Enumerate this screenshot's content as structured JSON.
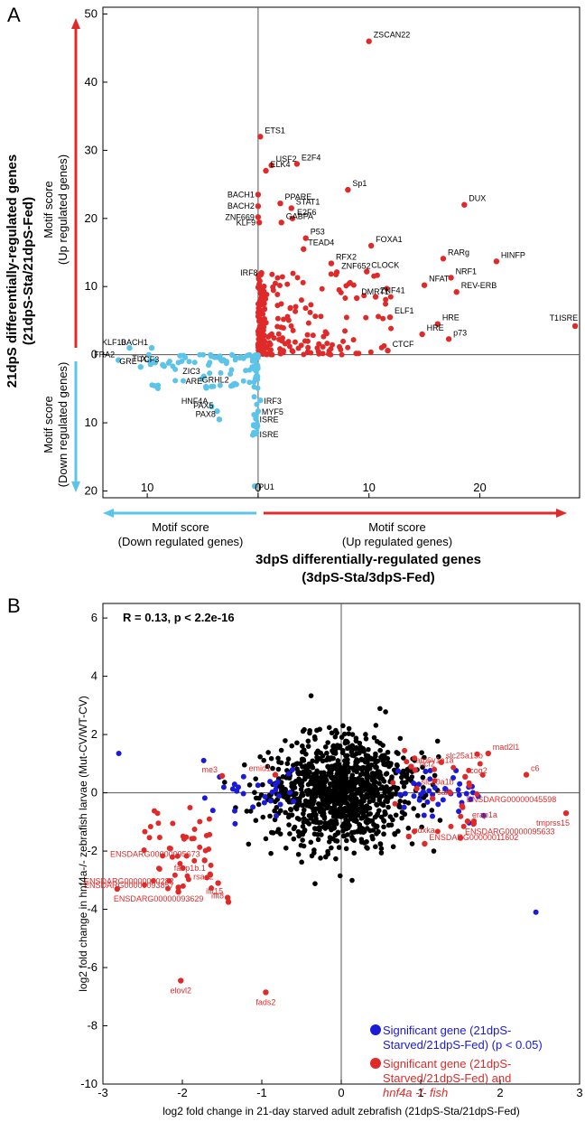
{
  "chart_data": [
    {
      "type": "scatter",
      "panel": "A",
      "title": "",
      "xlabel": [
        "3dpS differentially-regulated genes",
        "(3dpS-Sta/3dpS-Fed)"
      ],
      "ylabel": [
        "21dpS differentially-regulated genes",
        "(21dpS-Sta/21dpS-Fed)"
      ],
      "x_arrow_left": [
        "Motif score",
        "(Down regulated genes)"
      ],
      "x_arrow_right": [
        "Motif score",
        "(Up regulated genes)"
      ],
      "y_arrow_up": [
        "Motif score",
        "(Up regulated genes)"
      ],
      "y_arrow_down": [
        "Motif score",
        "(Down regulated genes)"
      ],
      "xlim": [
        -14,
        29
      ],
      "ylim": [
        -21,
        51
      ],
      "x_ticks": [
        {
          "v": -10,
          "label": "10"
        },
        {
          "v": 0,
          "label": "0"
        },
        {
          "v": 10,
          "label": "10"
        },
        {
          "v": 20,
          "label": "20"
        }
      ],
      "y_ticks": [
        {
          "v": 50,
          "label": "50"
        },
        {
          "v": 40,
          "label": "40"
        },
        {
          "v": 30,
          "label": "30"
        },
        {
          "v": 20,
          "label": "20"
        },
        {
          "v": 10,
          "label": "10"
        },
        {
          "v": 0,
          "label": "0"
        },
        {
          "v": -10,
          "label": "10"
        },
        {
          "v": -20,
          "label": "20"
        }
      ],
      "colors": {
        "up": "#e02a2a",
        "down": "#5bc4e8",
        "arrow_up": "#e02a2a",
        "arrow_down": "#5bc4e8"
      },
      "labeled_points": [
        {
          "label": "ZSCAN22",
          "x": 10,
          "y": 46,
          "group": "up"
        },
        {
          "label": "ETS1",
          "x": 0.2,
          "y": 32,
          "group": "up"
        },
        {
          "label": "USF2",
          "x": 1.2,
          "y": 27.8,
          "group": "up"
        },
        {
          "label": "E2F4",
          "x": 3.5,
          "y": 28,
          "group": "up"
        },
        {
          "label": "ELK4",
          "x": 0.7,
          "y": 27,
          "group": "up"
        },
        {
          "label": "BACH1",
          "x": 0,
          "y": 23.5,
          "group": "up"
        },
        {
          "label": "BACH2",
          "x": 0,
          "y": 21.8,
          "group": "up"
        },
        {
          "label": "PPARE",
          "x": 2.0,
          "y": 22.2,
          "group": "up"
        },
        {
          "label": "STAT1",
          "x": 3.0,
          "y": 21.5,
          "group": "up"
        },
        {
          "label": "Sp1",
          "x": 8.1,
          "y": 24.2,
          "group": "up"
        },
        {
          "label": "DUX",
          "x": 18.6,
          "y": 22,
          "group": "up"
        },
        {
          "label": "ZNF669",
          "x": 0,
          "y": 20.2,
          "group": "up"
        },
        {
          "label": "E2F6",
          "x": 3.1,
          "y": 20,
          "group": "up"
        },
        {
          "label": "KLF9",
          "x": 0.1,
          "y": 19.4,
          "group": "up"
        },
        {
          "label": "GABPA",
          "x": 2.1,
          "y": 19.4,
          "group": "up"
        },
        {
          "label": "P53",
          "x": 4.3,
          "y": 17.1,
          "group": "up"
        },
        {
          "label": "FOXA1",
          "x": 10.2,
          "y": 16,
          "group": "up"
        },
        {
          "label": "TEAD4",
          "x": 4.1,
          "y": 15.5,
          "group": "up"
        },
        {
          "label": "RARg",
          "x": 16.7,
          "y": 14.1,
          "group": "up"
        },
        {
          "label": "HINFP",
          "x": 21.5,
          "y": 13.7,
          "group": "up"
        },
        {
          "label": "RFX2",
          "x": 6.6,
          "y": 13.4,
          "group": "up"
        },
        {
          "label": "IRF8",
          "x": 0.3,
          "y": 12,
          "group": "up"
        },
        {
          "label": "ZNF652",
          "x": 7.1,
          "y": 12.1,
          "group": "up"
        },
        {
          "label": "CLOCK",
          "x": 9.8,
          "y": 12.2,
          "group": "up"
        },
        {
          "label": "NRF1",
          "x": 17.4,
          "y": 11.3,
          "group": "up"
        },
        {
          "label": "NFAT",
          "x": 15.0,
          "y": 10.2,
          "group": "up"
        },
        {
          "label": "REV-ERB",
          "x": 17.9,
          "y": 9.2,
          "group": "up"
        },
        {
          "label": "DMRT1",
          "x": 8.9,
          "y": 8.3,
          "group": "up"
        },
        {
          "label": "ZNF41",
          "x": 10.6,
          "y": 8.5,
          "group": "up"
        },
        {
          "label": "ELF1",
          "x": 11.9,
          "y": 5.5,
          "group": "up"
        },
        {
          "label": "HRE",
          "x": 16.2,
          "y": 4.5,
          "group": "up"
        },
        {
          "label": "HRE",
          "x": 14.8,
          "y": 3,
          "group": "up"
        },
        {
          "label": "T1ISRE",
          "x": 28.6,
          "y": 4.2,
          "group": "up"
        },
        {
          "label": "p73",
          "x": 17.2,
          "y": 2.3,
          "group": "up"
        },
        {
          "label": "CTCF",
          "x": 11.7,
          "y": 0.6,
          "group": "up"
        },
        {
          "label": "KLF10",
          "x": -11.6,
          "y": 1,
          "group": "down"
        },
        {
          "label": "BACH1",
          "x": -9.6,
          "y": 1,
          "group": "down"
        },
        {
          "label": "FRA2",
          "x": -12.6,
          "y": -0.8,
          "group": "down"
        },
        {
          "label": "GRE",
          "x": -10.6,
          "y": -1.8,
          "group": "down"
        },
        {
          "label": "TLX",
          "x": -9.7,
          "y": -1.4,
          "group": "down"
        },
        {
          "label": "TCF3",
          "x": -8.6,
          "y": -1.5,
          "group": "down"
        },
        {
          "label": "ZIC3",
          "x": -4.9,
          "y": -3.2,
          "group": "down"
        },
        {
          "label": "ARE",
          "x": -4.7,
          "y": -4.7,
          "group": "down"
        },
        {
          "label": "HNF4A",
          "x": -4.2,
          "y": -7.6,
          "group": "down"
        },
        {
          "label": "PAX5",
          "x": -3.7,
          "y": -8.3,
          "group": "down"
        },
        {
          "label": "PAX8",
          "x": -3.5,
          "y": -9.5,
          "group": "down"
        },
        {
          "label": "GRHL2",
          "x": -2.3,
          "y": -4.5,
          "group": "down"
        },
        {
          "label": "IRF3",
          "x": 0.2,
          "y": -6.7,
          "group": "down"
        },
        {
          "label": "MYF5",
          "x": 0,
          "y": -8.3,
          "group": "down"
        },
        {
          "label": "ISRE",
          "x": -0.2,
          "y": -9.4,
          "group": "down"
        },
        {
          "label": "ISRE",
          "x": -0.2,
          "y": -11.6,
          "group": "down"
        },
        {
          "label": "PU1",
          "x": -0.3,
          "y": -19.3,
          "group": "down"
        }
      ]
    },
    {
      "type": "scatter",
      "panel": "B",
      "title": "",
      "annotation": "R = 0.13, p < 2.2e-16",
      "xlabel": "log2 fold change in 21-day starved adult zebrafish (21dpS-Sta/21dpS-Fed)",
      "ylabel": "log2 fold change in hnf4a-/- zebrafish larvae (Mut-CV/WT-CV)",
      "xlim": [
        -3,
        3
      ],
      "ylim": [
        -10,
        6.5
      ],
      "x_ticks": [
        -3,
        -2,
        -1,
        0,
        1,
        2,
        3
      ],
      "y_ticks": [
        6,
        4,
        2,
        0,
        -2,
        -4,
        -6,
        -8,
        -10
      ],
      "colors": {
        "other": "#000000",
        "significant": "#1a1adb",
        "significant_hnf4a": "#e02a2a"
      },
      "legend": [
        {
          "group": "significant",
          "text": [
            "Significant gene (21dpS-",
            "Starved/21dpS-Fed) (p < 0.05)"
          ]
        },
        {
          "group": "significant_hnf4a",
          "text": [
            "Significant gene (21dpS-",
            "Starved/21dpS-Fed) and",
            "hnf4a -/- fish"
          ]
        }
      ],
      "legend_position": "bottom-right",
      "labeled_points": [
        {
          "label": "atp6v1e1a",
          "x": 0.88,
          "y": 0.9
        },
        {
          "label": "ncf2",
          "x": 0.93,
          "y": 0.78
        },
        {
          "label": "slc25a15b",
          "x": 1.26,
          "y": 1.05
        },
        {
          "label": "mad2l1",
          "x": 1.85,
          "y": 1.35
        },
        {
          "label": "c6",
          "x": 2.33,
          "y": 0.62
        },
        {
          "label": "emid1",
          "x": -0.83,
          "y": 0.62
        },
        {
          "label": "me3",
          "x": -1.5,
          "y": 0.58
        },
        {
          "label": "cog2",
          "x": 1.56,
          "y": 0.55
        },
        {
          "label": "ENSDARG00000045598",
          "x": 1.52,
          "y": -0.45
        },
        {
          "label": "erap1a",
          "x": 1.59,
          "y": -0.98
        },
        {
          "label": "tmprss15",
          "x": 2.83,
          "y": -0.7
        },
        {
          "label": "ENSDARG00000095633",
          "x": 1.5,
          "y": -1.55
        },
        {
          "label": "ENSDARG00000011602",
          "x": 1.05,
          "y": -1.75
        },
        {
          "label": "pdxka",
          "x": 0.85,
          "y": -1.5
        },
        {
          "label": "slc20a1b",
          "x": 0.95,
          "y": 0.15
        },
        {
          "label": "sal9",
          "x": 1.15,
          "y": -0.2
        },
        {
          "label": "ENSDARG00000095673",
          "x": -1.72,
          "y": -2.32
        },
        {
          "label": "fabp1b.1",
          "x": -1.65,
          "y": -2.8
        },
        {
          "label": "ENSDARG00000040282",
          "x": -2.05,
          "y": -3.25
        },
        {
          "label": "rsad2",
          "x": -1.55,
          "y": -3.1
        },
        {
          "label": "ENSDARG00000093857",
          "x": -2.05,
          "y": -3.4
        },
        {
          "label": "ifit15",
          "x": -1.43,
          "y": -3.6
        },
        {
          "label": "ifit8",
          "x": -1.42,
          "y": -3.75
        },
        {
          "label": "ENSDARG00000093629",
          "x": -2.82,
          "y": -3.3
        },
        {
          "label": "elovl2",
          "x": -2.02,
          "y": -6.45
        },
        {
          "label": "fads2",
          "x": -0.95,
          "y": -6.85
        }
      ]
    }
  ]
}
